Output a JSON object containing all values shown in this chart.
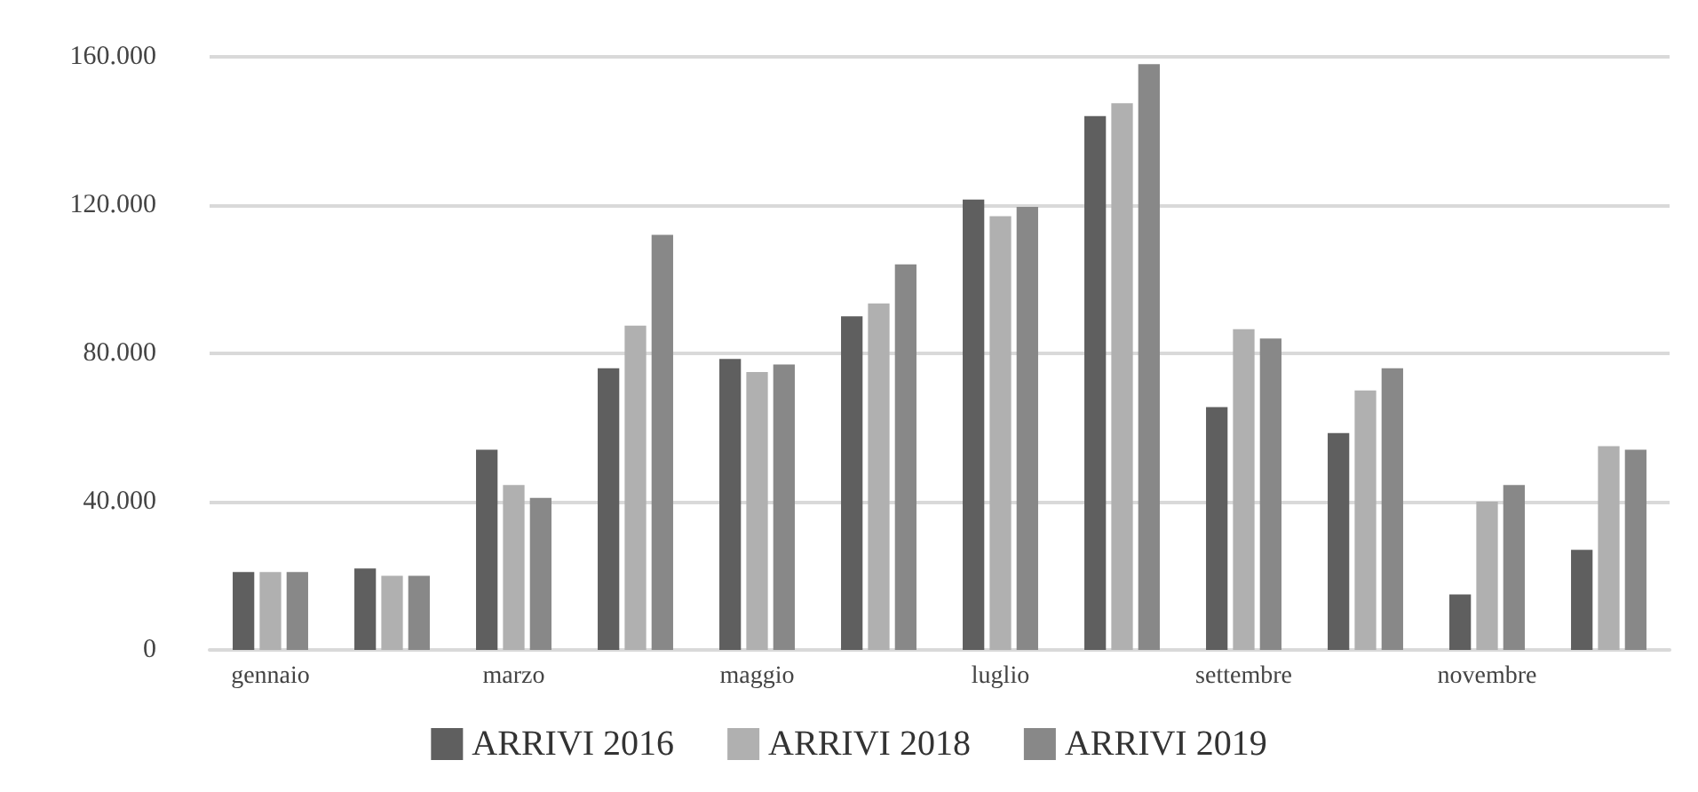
{
  "chart_data": {
    "type": "bar",
    "categories": [
      "gennaio",
      null,
      "marzo",
      null,
      "maggio",
      null,
      "luglio",
      null,
      "settembre",
      null,
      "novembre",
      null
    ],
    "series": [
      {
        "name": "ARRIVI 2016",
        "color": "#5f5f5f",
        "values": [
          21000,
          22000,
          54000,
          76000,
          78500,
          90000,
          121500,
          144000,
          65500,
          58500,
          15000,
          27000
        ]
      },
      {
        "name": "ARRIVI 2018",
        "color": "#b0b0b0",
        "values": [
          21000,
          20000,
          44500,
          87500,
          75000,
          93500,
          117000,
          147500,
          86500,
          70000,
          40000,
          55000
        ]
      },
      {
        "name": "ARRIVI 2019",
        "color": "#888888",
        "values": [
          21000,
          20000,
          41000,
          112000,
          77000,
          104000,
          119500,
          158000,
          84000,
          76000,
          44500,
          54000
        ]
      }
    ],
    "ylim": [
      0,
      160000
    ],
    "yticks": [
      {
        "value": 0,
        "label": "0"
      },
      {
        "value": 40000,
        "label": "40.000"
      },
      {
        "value": 80000,
        "label": "80.000"
      },
      {
        "value": 120000,
        "label": "120.000"
      },
      {
        "value": 160000,
        "label": "160.000"
      }
    ],
    "grid": "y",
    "legend": "bottom"
  }
}
